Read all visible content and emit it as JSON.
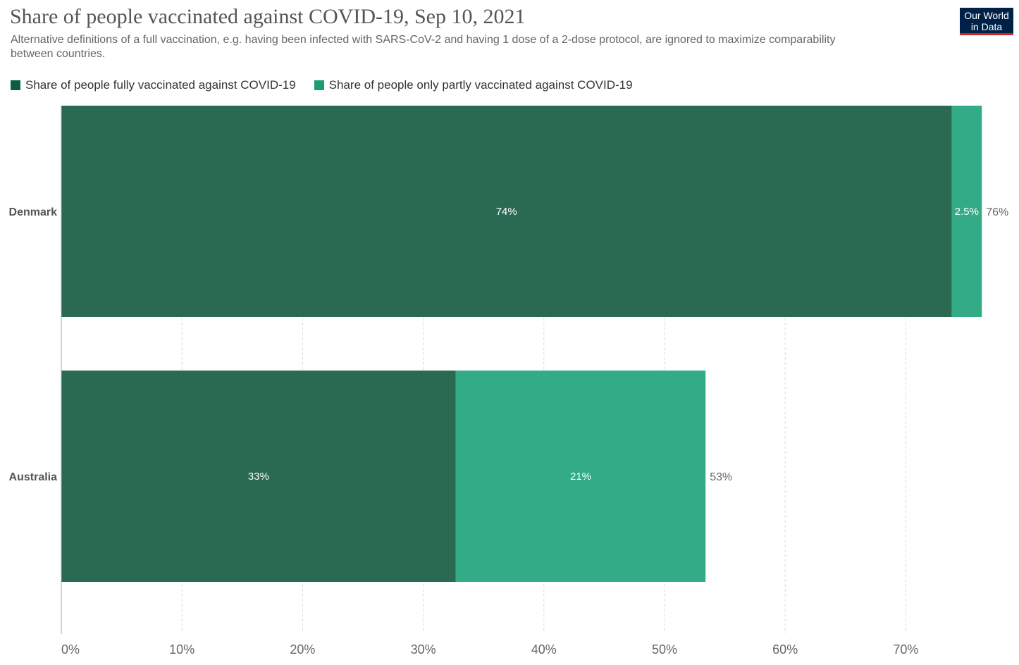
{
  "header": {
    "title": "Share of people vaccinated against COVID-19, Sep 10, 2021",
    "subtitle": "Alternative definitions of a full vaccination, e.g. having been infected with SARS-CoV-2 and having 1 dose of a 2-dose protocol, are ignored to maximize comparability between countries.",
    "logo_line1": "Our World",
    "logo_line2": "in Data"
  },
  "colors": {
    "fully": "#2a6a53",
    "partly": "#33ab86",
    "legend_fully": "#0d5c44",
    "legend_partly": "#1a9e73",
    "grid": "#dddddd",
    "axis": "#aaaaaa",
    "logo_bg": "#002147",
    "logo_accent": "#ce261e"
  },
  "chart_data": {
    "type": "bar",
    "orientation": "horizontal",
    "stacked": true,
    "title": "Share of people vaccinated against COVID-19, Sep 10, 2021",
    "categories": [
      "Denmark",
      "Australia"
    ],
    "series": [
      {
        "name": "Share of people fully vaccinated against COVID-19",
        "values": [
          73.8,
          32.7
        ],
        "labels": [
          "74%",
          "33%"
        ]
      },
      {
        "name": "Share of people only partly vaccinated against COVID-19",
        "values": [
          2.5,
          20.7
        ],
        "labels": [
          "2.5%",
          "21%"
        ]
      }
    ],
    "totals": [
      "76%",
      "53%"
    ],
    "xlim": [
      0,
      77
    ],
    "xticks": [
      0,
      10,
      20,
      30,
      40,
      50,
      60,
      70
    ],
    "xtick_labels": [
      "0%",
      "10%",
      "20%",
      "30%",
      "40%",
      "50%",
      "60%",
      "70%"
    ],
    "xlabel": "",
    "ylabel": "",
    "grid": true,
    "legend_position": "top-left"
  }
}
